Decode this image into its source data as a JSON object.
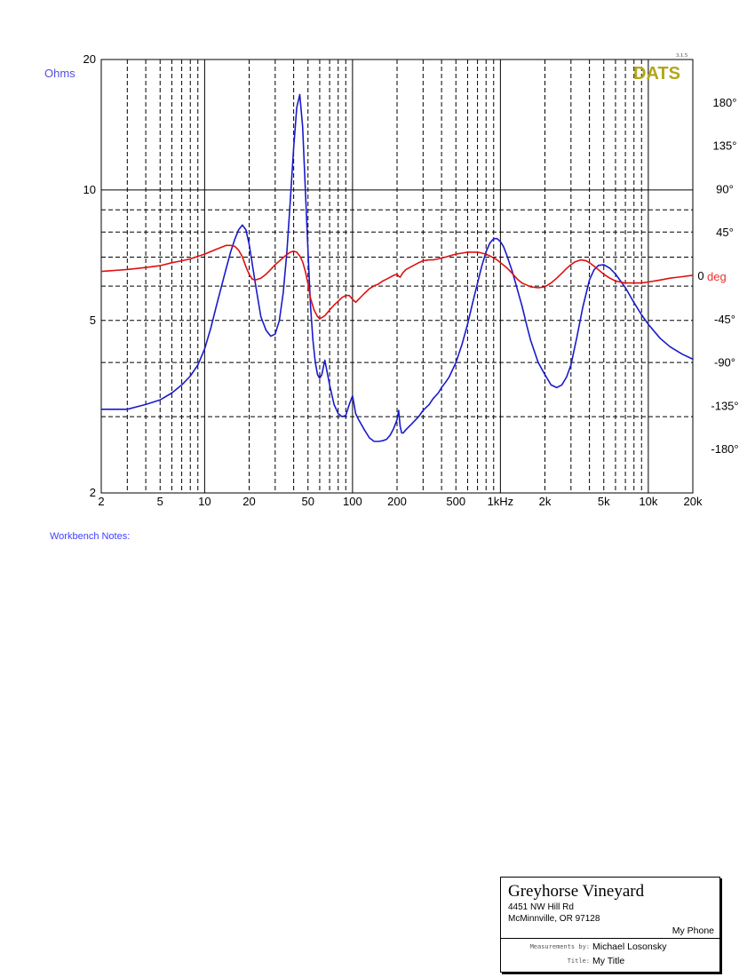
{
  "chart_data": {
    "type": "line",
    "x_scale": "log",
    "xlim": [
      2,
      20000
    ],
    "x_tick_labels": [
      "2",
      "5",
      "10",
      "20",
      "50",
      "100",
      "200",
      "500",
      "1kHz",
      "2k",
      "5k",
      "10k",
      "20k"
    ],
    "x_tick_values": [
      2,
      5,
      10,
      20,
      50,
      100,
      200,
      500,
      1000,
      2000,
      5000,
      10000,
      20000
    ],
    "y_left": {
      "label": "Ohms",
      "scale": "log",
      "lim": [
        2,
        20
      ],
      "tick_labels": [
        "20",
        "10",
        "5",
        "2"
      ],
      "tick_values": [
        20,
        10,
        5,
        2
      ]
    },
    "y_right": {
      "label": "deg",
      "scale": "linear",
      "lim": [
        -225,
        225
      ],
      "tick_labels": [
        "180°",
        "135°",
        "90°",
        "45°",
        "0",
        "-45°",
        "-90°",
        "-135°",
        "-180°"
      ],
      "tick_values": [
        180,
        135,
        90,
        45,
        0,
        -45,
        -90,
        -135,
        -180
      ]
    },
    "grid": true,
    "version": "3.1.5",
    "logo": "DATS",
    "series": [
      {
        "name": "Ohms",
        "axis": "left",
        "color": "#1a1acc",
        "x": [
          2,
          3,
          4,
          5,
          6,
          7,
          8,
          9,
          10,
          11,
          12,
          13,
          14,
          15,
          16,
          17,
          18,
          19,
          20,
          22,
          24,
          26,
          28,
          30,
          32,
          34,
          36,
          38,
          40,
          42,
          44,
          46,
          48,
          50,
          52,
          54,
          56,
          58,
          60,
          62,
          65,
          70,
          75,
          80,
          85,
          90,
          95,
          100,
          105,
          110,
          120,
          130,
          140,
          150,
          160,
          170,
          180,
          190,
          200,
          205,
          210,
          215,
          220,
          230,
          250,
          280,
          300,
          330,
          350,
          380,
          400,
          430,
          450,
          500,
          550,
          600,
          650,
          700,
          750,
          800,
          850,
          900,
          950,
          1000,
          1050,
          1100,
          1200,
          1300,
          1400,
          1500,
          1600,
          1800,
          2000,
          2200,
          2400,
          2600,
          2800,
          3000,
          3300,
          3600,
          4000,
          4300,
          4600,
          5000,
          5500,
          6000,
          7000,
          8000,
          9000,
          10000,
          12000,
          14000,
          17000,
          20000
        ],
        "values": [
          3.12,
          3.12,
          3.2,
          3.28,
          3.4,
          3.55,
          3.72,
          3.95,
          4.3,
          4.8,
          5.4,
          6.0,
          6.6,
          7.2,
          7.7,
          8.1,
          8.3,
          8.1,
          7.5,
          6.1,
          5.1,
          4.75,
          4.6,
          4.65,
          5.0,
          5.8,
          7.2,
          9.5,
          12.5,
          15.5,
          16.6,
          14.0,
          10.0,
          7.2,
          5.4,
          4.5,
          4.0,
          3.75,
          3.68,
          3.75,
          4.05,
          3.55,
          3.2,
          3.05,
          3.0,
          3.02,
          3.2,
          3.35,
          3.05,
          2.95,
          2.8,
          2.68,
          2.63,
          2.63,
          2.64,
          2.66,
          2.72,
          2.82,
          2.95,
          3.1,
          2.85,
          2.75,
          2.75,
          2.8,
          2.88,
          3.0,
          3.1,
          3.2,
          3.3,
          3.4,
          3.5,
          3.62,
          3.7,
          4.0,
          4.4,
          4.9,
          5.5,
          6.1,
          6.7,
          7.2,
          7.55,
          7.72,
          7.72,
          7.6,
          7.4,
          7.1,
          6.5,
          5.9,
          5.4,
          4.9,
          4.5,
          4.0,
          3.75,
          3.55,
          3.5,
          3.55,
          3.7,
          3.95,
          4.6,
          5.35,
          6.2,
          6.55,
          6.7,
          6.72,
          6.6,
          6.4,
          5.95,
          5.5,
          5.15,
          4.9,
          4.55,
          4.35,
          4.18,
          4.07
        ]
      },
      {
        "name": "deg",
        "axis": "right",
        "color": "#dd1010",
        "x": [
          2,
          3,
          4,
          5,
          6,
          7,
          8,
          10,
          12,
          14,
          15,
          16,
          17,
          18,
          19,
          20,
          21,
          22,
          24,
          26,
          28,
          30,
          35,
          38,
          40,
          42,
          44,
          46,
          48,
          50,
          52,
          55,
          58,
          60,
          62,
          65,
          70,
          75,
          80,
          85,
          90,
          95,
          100,
          105,
          110,
          120,
          130,
          140,
          150,
          160,
          170,
          180,
          190,
          200,
          205,
          210,
          220,
          230,
          250,
          280,
          300,
          330,
          350,
          380,
          400,
          430,
          450,
          500,
          550,
          600,
          650,
          700,
          750,
          800,
          850,
          900,
          950,
          1000,
          1100,
          1200,
          1300,
          1400,
          1500,
          1600,
          1800,
          2000,
          2200,
          2400,
          2600,
          2800,
          3000,
          3200,
          3500,
          3800,
          4000,
          4500,
          5000,
          5500,
          6000,
          7000,
          8000,
          9000,
          10000,
          12000,
          14000,
          17000,
          20000
        ],
        "values": [
          5,
          7,
          9,
          11,
          14,
          16,
          18,
          23,
          28,
          32,
          32,
          31,
          27,
          20,
          10,
          2,
          -3,
          -4,
          -2,
          2,
          7,
          12,
          21,
          25,
          26,
          25,
          21,
          15,
          5,
          -8,
          -23,
          -35,
          -42,
          -44,
          -43,
          -41,
          -35,
          -30,
          -26,
          -22,
          -20,
          -20,
          -24,
          -27,
          -24,
          -18,
          -13,
          -10,
          -8,
          -5,
          -3,
          -1,
          1,
          2,
          0,
          -1,
          4,
          7,
          10,
          14,
          16,
          17,
          17,
          18,
          19,
          20,
          21,
          23,
          24,
          25,
          25,
          25,
          24,
          23,
          21,
          19,
          17,
          14,
          9,
          3,
          -3,
          -7,
          -9,
          -11,
          -12,
          -11,
          -7,
          -2,
          3,
          8,
          12,
          15,
          17,
          16,
          14,
          8,
          2,
          -2,
          -5,
          -7,
          -7,
          -7,
          -6,
          -4,
          -2,
          -0.5,
          1
        ]
      }
    ]
  },
  "notes_label": "Workbench Notes:",
  "titleblock": {
    "company": "Greyhorse Vineyard",
    "address1": "4451 NW Hill Rd",
    "address2": "McMinnville, OR 97128",
    "project": "My Phone",
    "measured_by_label": "Measurements by:",
    "measured_by": "Michael Losonsky",
    "title_label": "Title:",
    "title": "My Title"
  },
  "colors": {
    "impedance": "#1a1acc",
    "phase": "#dd1010",
    "logo": "#b3a61a",
    "axis_left_label": "#5050e0",
    "axis_right_label": "#ee3030",
    "grid": "#000000"
  }
}
